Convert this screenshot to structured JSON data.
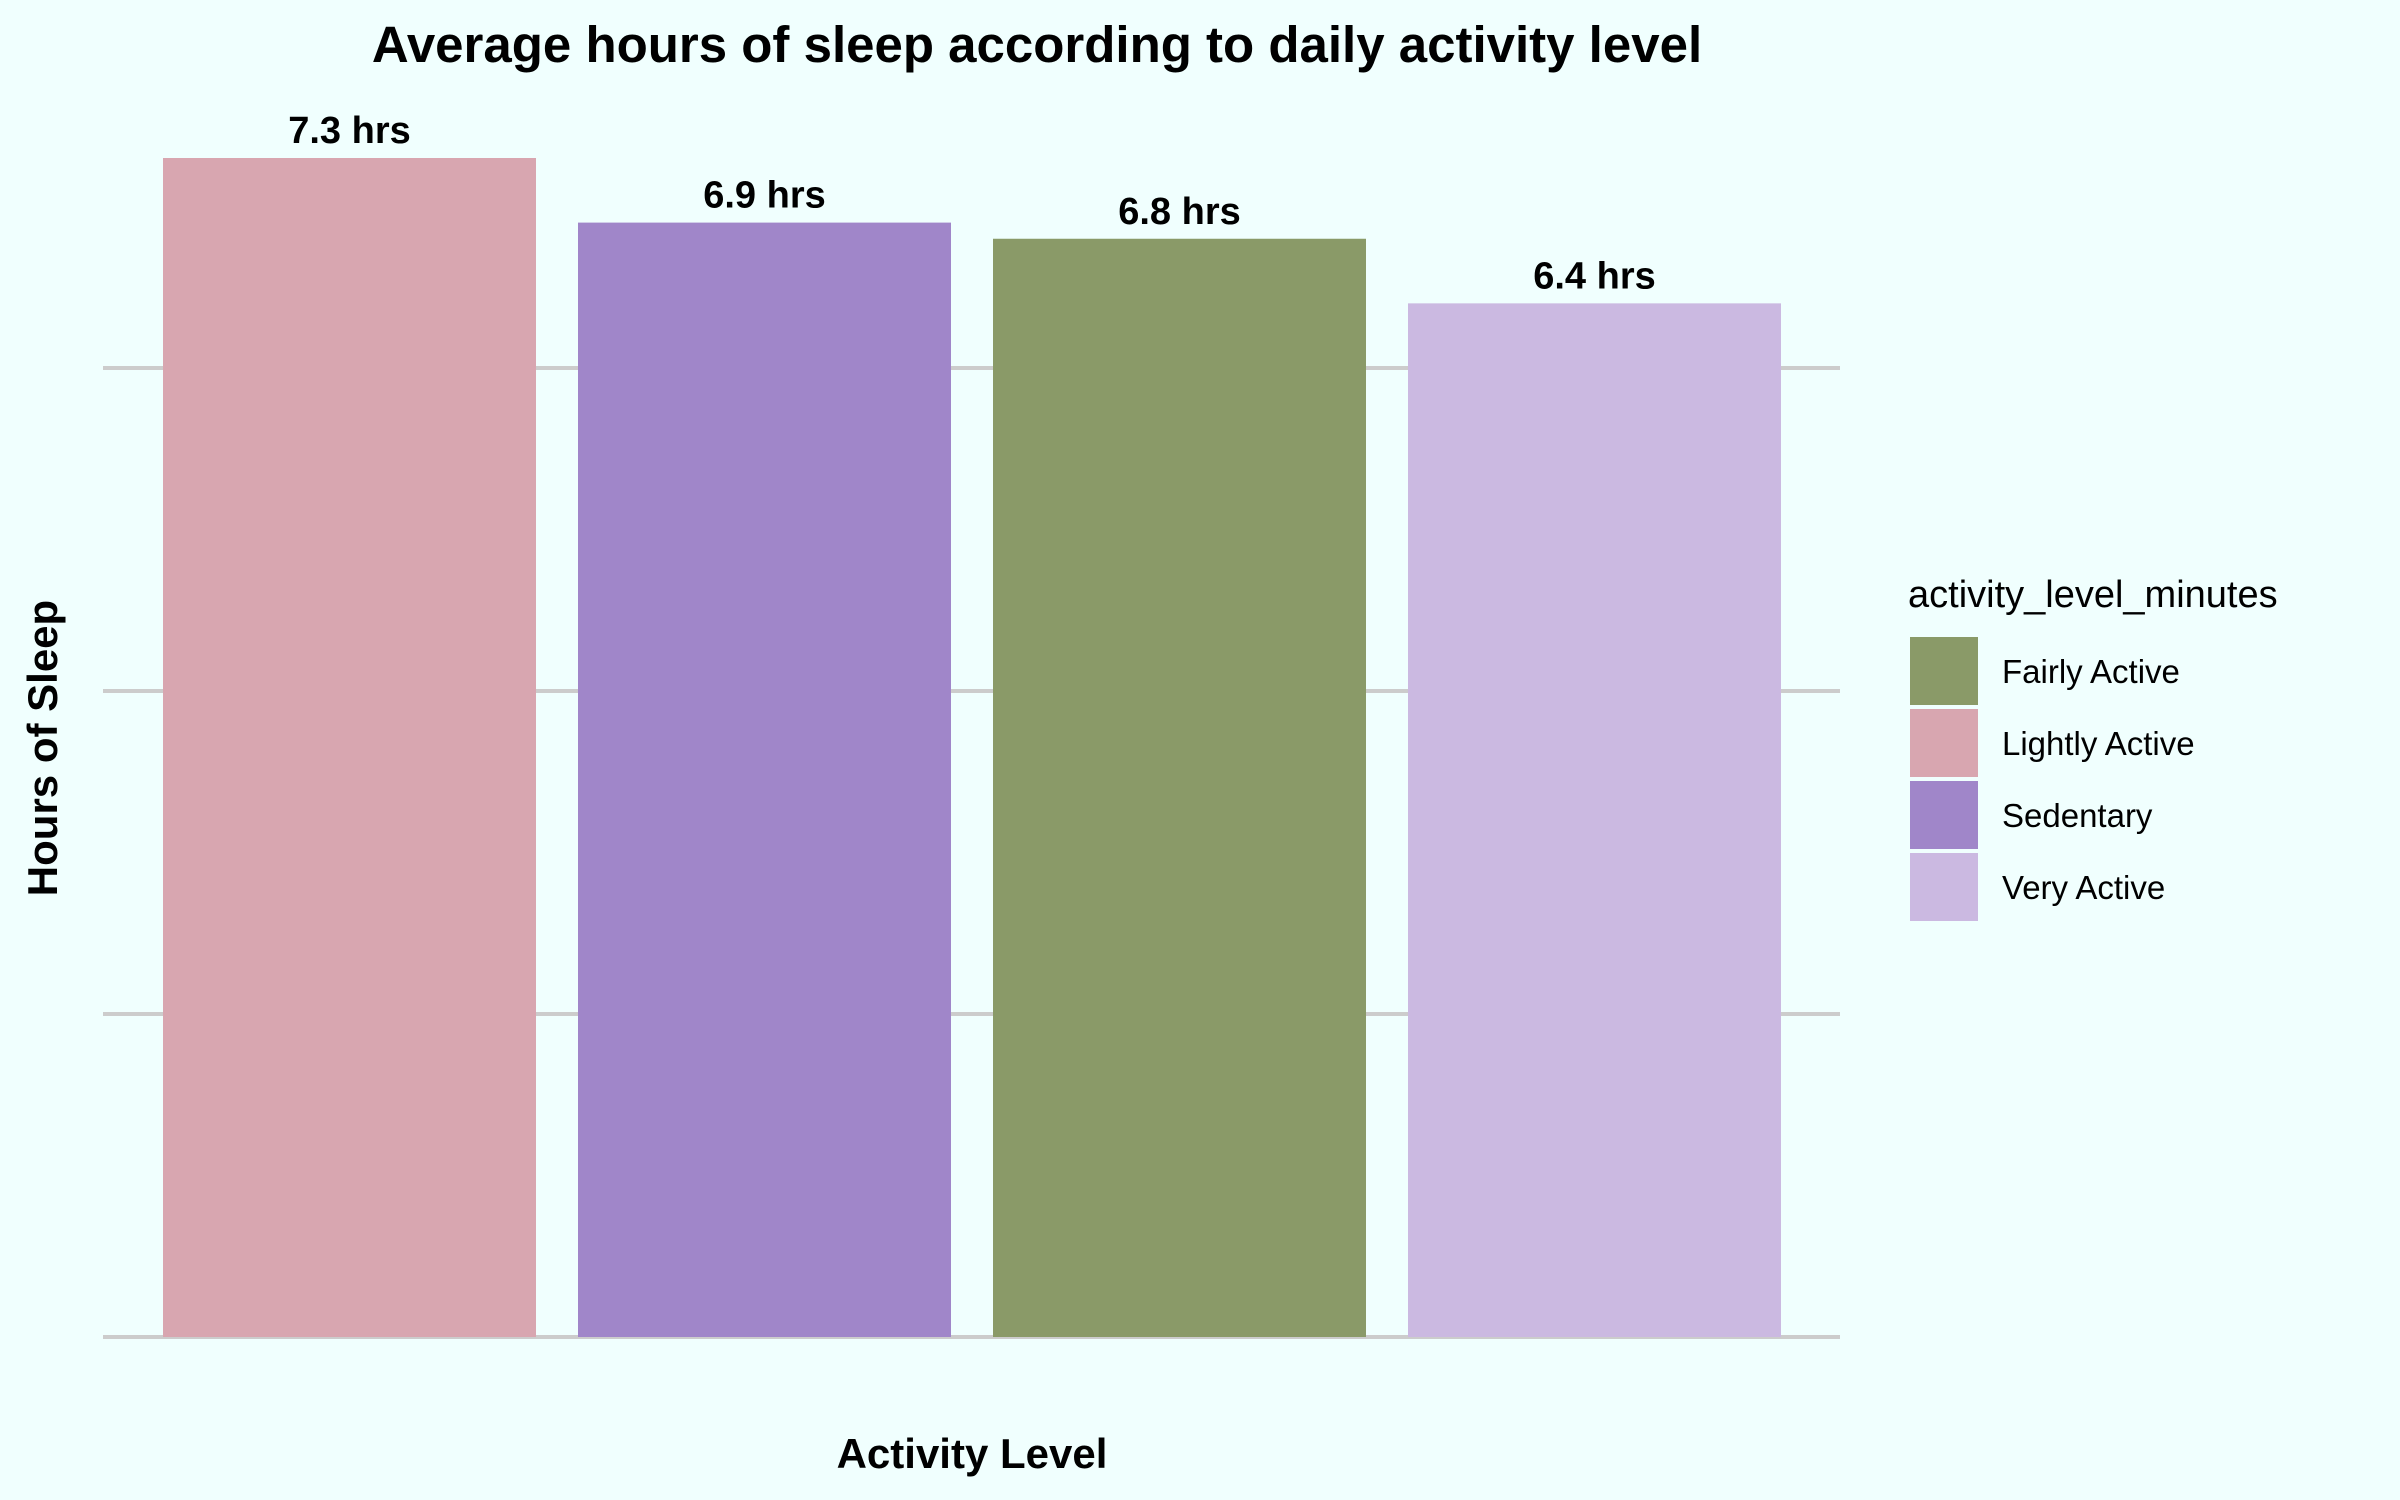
{
  "chart_data": {
    "type": "bar",
    "title": "Average hours of sleep according to daily activity level",
    "xlabel": "Activity Level",
    "ylabel": "Hours of Sleep",
    "ylim": [
      0,
      7.3
    ],
    "grid": true,
    "y_gridlines": [
      0,
      2,
      4,
      6
    ],
    "categories": [
      "Lightly Active",
      "Sedentary",
      "Fairly Active",
      "Very Active"
    ],
    "values": [
      7.3,
      6.9,
      6.8,
      6.4
    ],
    "data_labels": [
      "7.3 hrs",
      "6.9 hrs",
      "6.8 hrs",
      "6.4 hrs"
    ],
    "bar_colors": [
      "#d8a6b0",
      "#a086c9",
      "#8a9a68",
      "#cbb9e1"
    ],
    "legend": {
      "title": "activity_level_minutes",
      "position": "right",
      "entries": [
        {
          "label": "Fairly Active",
          "color": "#8a9a68"
        },
        {
          "label": "Lightly Active",
          "color": "#d8a6b0"
        },
        {
          "label": "Sedentary",
          "color": "#a086c9"
        },
        {
          "label": "Very Active",
          "color": "#cbb9e1"
        }
      ]
    },
    "colors": {
      "background": "#f0fffe",
      "gridline": "#cccccc",
      "text": "#000000"
    }
  }
}
